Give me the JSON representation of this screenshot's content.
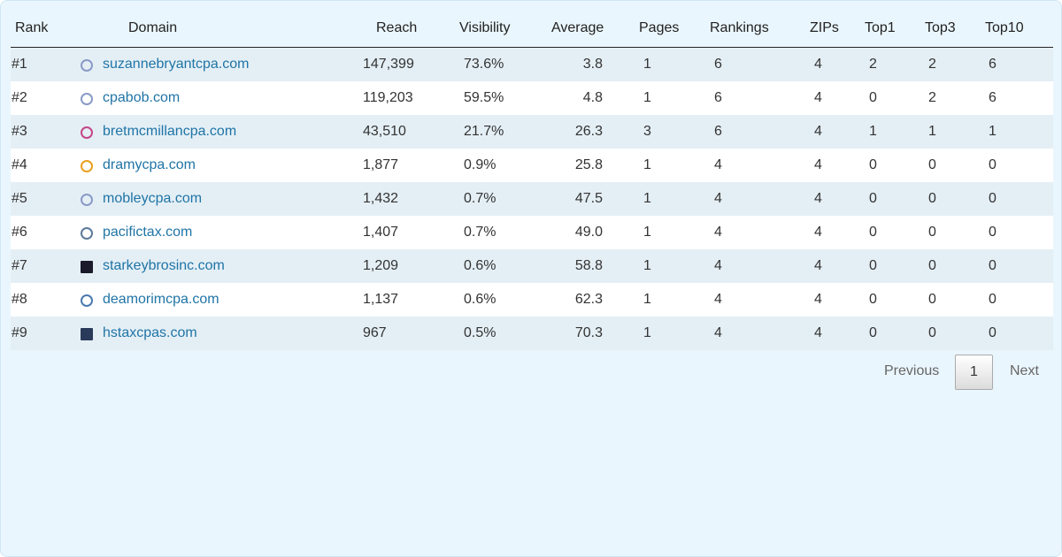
{
  "table": {
    "headers": [
      "Rank",
      "Domain",
      "Reach",
      "Visibility",
      "Average",
      "Pages",
      "Rankings",
      "ZIPs",
      "Top1",
      "Top3",
      "Top10"
    ],
    "rows": [
      [
        "#1",
        "suzannebryantcpa.com",
        "147,399",
        "73.6%",
        "3.8",
        "1",
        "6",
        "4",
        "2",
        "2",
        "6"
      ],
      [
        "#2",
        "cpabob.com",
        "119,203",
        "59.5%",
        "4.8",
        "1",
        "6",
        "4",
        "0",
        "2",
        "6"
      ],
      [
        "#3",
        "bretmcmillancpa.com",
        "43,510",
        "21.7%",
        "26.3",
        "3",
        "6",
        "4",
        "1",
        "1",
        "1"
      ],
      [
        "#4",
        "dramycpa.com",
        "1,877",
        "0.9%",
        "25.8",
        "1",
        "4",
        "4",
        "0",
        "0",
        "0"
      ],
      [
        "#5",
        "mobleycpa.com",
        "1,432",
        "0.7%",
        "47.5",
        "1",
        "4",
        "4",
        "0",
        "0",
        "0"
      ],
      [
        "#6",
        "pacifictax.com",
        "1,407",
        "0.7%",
        "49.0",
        "1",
        "4",
        "4",
        "0",
        "0",
        "0"
      ],
      [
        "#7",
        "starkeybrosinc.com",
        "1,209",
        "0.6%",
        "58.8",
        "1",
        "4",
        "4",
        "0",
        "0",
        "0"
      ],
      [
        "#8",
        "deamorimcpa.com",
        "1,137",
        "0.6%",
        "62.3",
        "1",
        "4",
        "4",
        "0",
        "0",
        "0"
      ],
      [
        "#9",
        "hstaxcpas.com",
        "967",
        "0.5%",
        "70.3",
        "1",
        "4",
        "4",
        "0",
        "0",
        "0"
      ]
    ]
  },
  "pagination": {
    "previous": "Previous",
    "page": "1",
    "next": "Next"
  }
}
